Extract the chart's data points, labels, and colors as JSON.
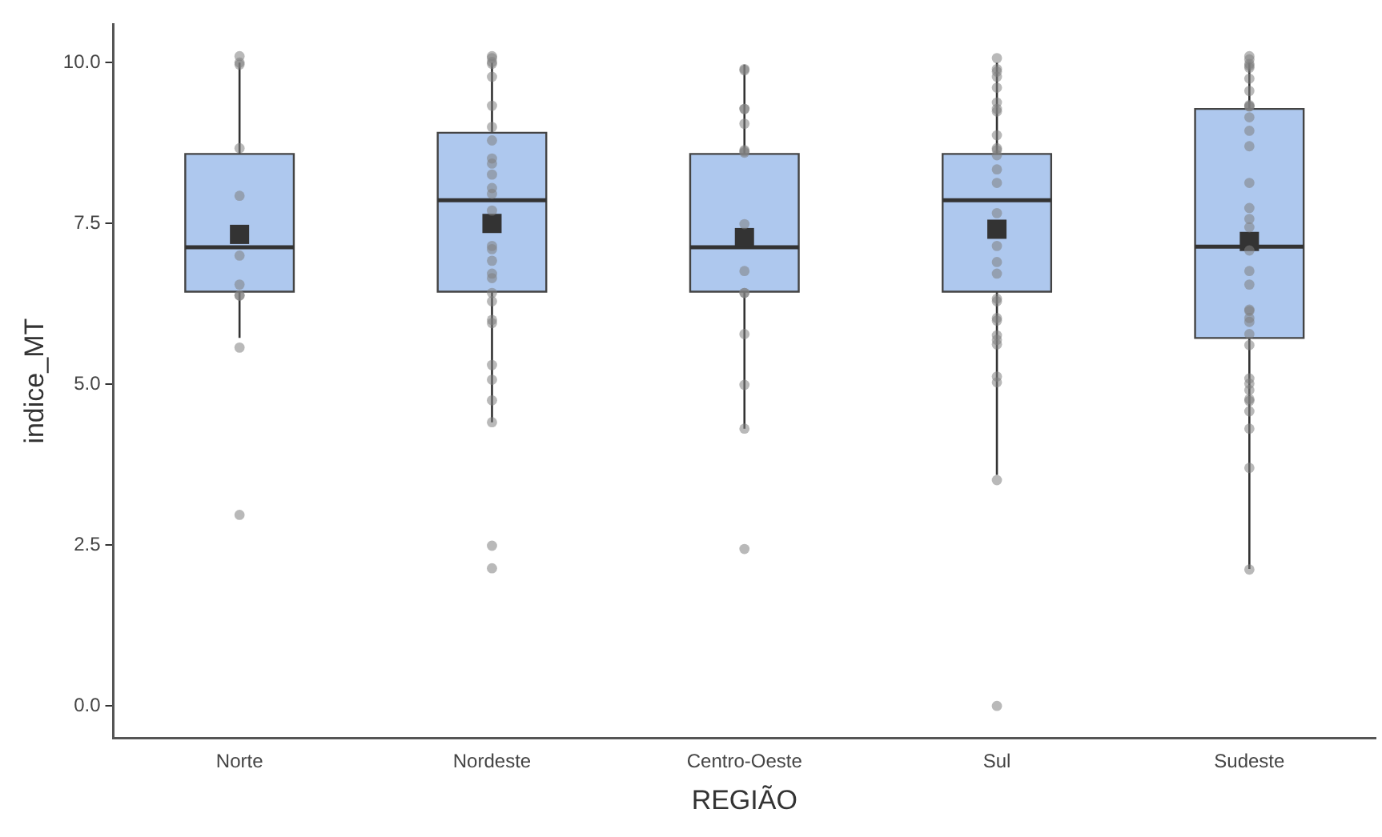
{
  "chart_data": {
    "type": "box",
    "xlabel": "REGIÃO",
    "ylabel": "indice_MT",
    "categories": [
      "Norte",
      "Nordeste",
      "Centro-Oeste",
      "Sul",
      "Sudeste"
    ],
    "ylim": [
      -0.5,
      10.6
    ],
    "yticks": [
      {
        "value": 0,
        "label": "0.0"
      },
      {
        "value": 2.5,
        "label": "2.5"
      },
      {
        "value": 5,
        "label": "5.0"
      },
      {
        "value": 7.5,
        "label": "7.5"
      },
      {
        "value": 10,
        "label": "10.0"
      }
    ],
    "grid": false,
    "legend": false,
    "series": [
      {
        "color": "#aec8ee",
        "boxes": [
          {
            "low": 5.72,
            "q1": 6.44,
            "median": 7.13,
            "q3": 8.58,
            "high": 10.0,
            "mean": 7.33
          },
          {
            "low": 4.41,
            "q1": 6.44,
            "median": 7.86,
            "q3": 8.91,
            "high": 10.0,
            "mean": 7.5
          },
          {
            "low": 4.31,
            "q1": 6.44,
            "median": 7.13,
            "q3": 8.58,
            "high": 9.97,
            "mean": 7.28
          },
          {
            "low": 3.59,
            "q1": 6.44,
            "median": 7.86,
            "q3": 8.58,
            "high": 10.0,
            "mean": 7.41
          },
          {
            "low": 2.13,
            "q1": 5.72,
            "median": 7.14,
            "q3": 9.28,
            "high": 10.0,
            "mean": 7.22
          }
        ]
      },
      {
        "type": "scatter",
        "color": "#7f7f7f",
        "marker": "circle",
        "x": [
          "Norte",
          "Norte",
          "Norte",
          "Norte",
          "Norte",
          "Norte",
          "Norte",
          "Norte",
          "Norte",
          "Norte",
          "Norte",
          "Nordeste",
          "Nordeste",
          "Nordeste",
          "Nordeste",
          "Nordeste",
          "Nordeste",
          "Nordeste",
          "Nordeste",
          "Nordeste",
          "Nordeste",
          "Nordeste",
          "Nordeste",
          "Nordeste",
          "Nordeste",
          "Nordeste",
          "Nordeste",
          "Nordeste",
          "Nordeste",
          "Nordeste",
          "Nordeste",
          "Nordeste",
          "Nordeste",
          "Nordeste",
          "Nordeste",
          "Nordeste",
          "Nordeste",
          "Nordeste",
          "Nordeste",
          "Nordeste",
          "Centro-Oeste",
          "Centro-Oeste",
          "Centro-Oeste",
          "Centro-Oeste",
          "Centro-Oeste",
          "Centro-Oeste",
          "Centro-Oeste",
          "Centro-Oeste",
          "Centro-Oeste",
          "Centro-Oeste",
          "Centro-Oeste",
          "Centro-Oeste",
          "Centro-Oeste",
          "Centro-Oeste",
          "Centro-Oeste",
          "Centro-Oeste",
          "Sul",
          "Sul",
          "Sul",
          "Sul",
          "Sul",
          "Sul",
          "Sul",
          "Sul",
          "Sul",
          "Sul",
          "Sul",
          "Sul",
          "Sul",
          "Sul",
          "Sul",
          "Sul",
          "Sul",
          "Sul",
          "Sul",
          "Sul",
          "Sul",
          "Sul",
          "Sul",
          "Sul",
          "Sul",
          "Sul",
          "Sul",
          "Sul",
          "Sul",
          "Sudeste",
          "Sudeste",
          "Sudeste",
          "Sudeste",
          "Sudeste",
          "Sudeste",
          "Sudeste",
          "Sudeste",
          "Sudeste",
          "Sudeste",
          "Sudeste",
          "Sudeste",
          "Sudeste",
          "Sudeste",
          "Sudeste",
          "Sudeste",
          "Sudeste",
          "Sudeste",
          "Sudeste",
          "Sudeste",
          "Sudeste",
          "Sudeste",
          "Sudeste",
          "Sudeste",
          "Sudeste",
          "Sudeste",
          "Sudeste",
          "Sudeste",
          "Sudeste",
          "Sudeste",
          "Sudeste",
          "Sudeste",
          "Sudeste",
          "Sudeste",
          "Sudeste"
        ],
        "values": [
          10.1,
          10.0,
          9.97,
          8.67,
          7.93,
          7.0,
          6.55,
          6.38,
          6.38,
          5.57,
          2.97,
          10.1,
          10.07,
          10.01,
          9.98,
          9.78,
          9.33,
          9.0,
          8.79,
          8.51,
          8.43,
          8.26,
          8.05,
          7.96,
          7.7,
          7.15,
          7.1,
          6.92,
          6.72,
          6.65,
          6.42,
          6.29,
          6.0,
          5.95,
          5.3,
          5.07,
          4.75,
          4.41,
          2.49,
          2.14,
          9.9,
          9.88,
          9.28,
          9.28,
          9.05,
          8.64,
          8.62,
          8.6,
          7.49,
          6.76,
          6.42,
          6.42,
          5.78,
          4.99,
          4.31,
          2.44,
          10.07,
          9.9,
          9.86,
          9.78,
          9.61,
          9.38,
          9.28,
          9.24,
          8.87,
          8.67,
          8.64,
          8.56,
          8.34,
          8.13,
          7.66,
          7.15,
          6.9,
          6.72,
          6.33,
          6.29,
          6.03,
          5.99,
          5.76,
          5.69,
          5.62,
          5.12,
          5.03,
          3.51,
          0.0,
          10.1,
          10.05,
          9.98,
          9.95,
          9.92,
          9.75,
          9.56,
          9.34,
          9.32,
          9.32,
          9.15,
          8.94,
          8.7,
          8.13,
          7.74,
          7.57,
          7.44,
          7.08,
          6.76,
          6.55,
          6.16,
          6.14,
          6.03,
          5.97,
          5.78,
          5.61,
          5.09,
          5.01,
          4.91,
          4.77,
          4.74,
          4.58,
          4.31,
          3.7,
          2.12
        ]
      }
    ]
  }
}
